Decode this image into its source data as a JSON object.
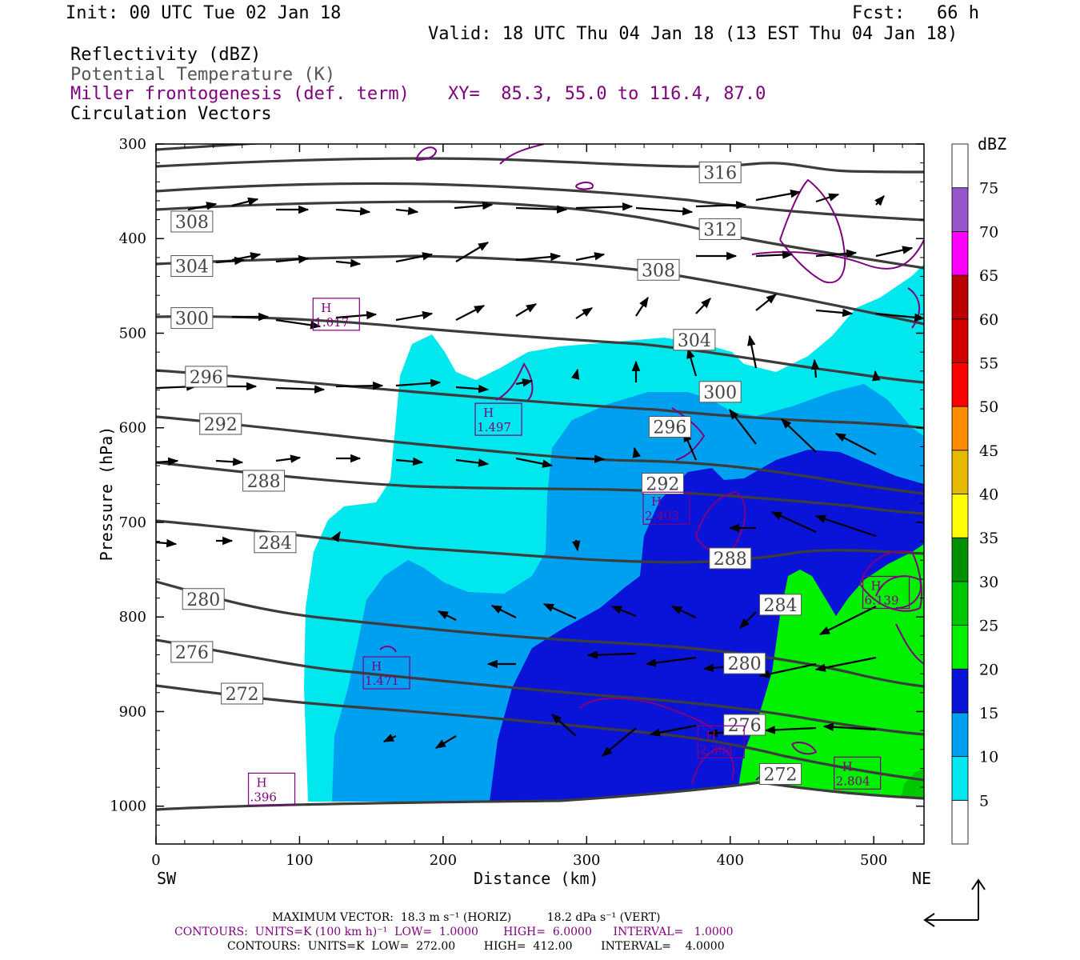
{
  "header": {
    "init": "Init: 00 UTC Tue 02 Jan 18",
    "fcst": "Fcst:   66 h",
    "valid": "Valid: 18 UTC Thu 04 Jan 18 (13 EST Thu 04 Jan 18)",
    "legend": [
      {
        "text": "Reflectivity (dBZ)",
        "color": "#000000"
      },
      {
        "text": "Potential Temperature (K)",
        "color": "#555555"
      },
      {
        "text": "Miller frontogenesis (def. term)",
        "color": "#800080"
      },
      {
        "text": "Circulation Vectors",
        "color": "#000000"
      }
    ],
    "xy": "XY=  85.3, 55.0 to 116.4, 87.0"
  },
  "chart_data": {
    "type": "heatmap",
    "xlabel": "Distance (km)",
    "ylabel": "Pressure (hPa)",
    "xlim": [
      0,
      535
    ],
    "ylim": [
      1040,
      300
    ],
    "x_ticks": [
      "0",
      "100",
      "200",
      "300",
      "400",
      "500"
    ],
    "x_tick_values": [
      0,
      100,
      200,
      300,
      400,
      500
    ],
    "y_ticks": [
      "300",
      "400",
      "500",
      "600",
      "700",
      "800",
      "900",
      "1000"
    ],
    "y_tick_values": [
      300,
      400,
      500,
      600,
      700,
      800,
      900,
      1000
    ],
    "sw_label": "SW",
    "ne_label": "NE",
    "colorbar": {
      "unit": "dBZ",
      "levels": [
        "5",
        "10",
        "15",
        "20",
        "25",
        "30",
        "35",
        "40",
        "45",
        "50",
        "55",
        "60",
        "65",
        "70",
        "75"
      ],
      "colors": [
        "#ffffff",
        "#00e8ee",
        "#00a0f0",
        "#0a14d8",
        "#00f000",
        "#00c800",
        "#009000",
        "#ffff00",
        "#e6b800",
        "#ff8c00",
        "#ff0000",
        "#d40000",
        "#bc0000",
        "#ff00ff",
        "#9955cc",
        "#ffffff"
      ]
    },
    "theta_labels": [
      {
        "text": "316",
        "x": 393,
        "p": 330
      },
      {
        "text": "312",
        "x": 393,
        "p": 390
      },
      {
        "text": "308",
        "x": 25,
        "p": 382
      },
      {
        "text": "308",
        "x": 350,
        "p": 433
      },
      {
        "text": "304",
        "x": 25,
        "p": 429
      },
      {
        "text": "304",
        "x": 375,
        "p": 507
      },
      {
        "text": "300",
        "x": 25,
        "p": 484
      },
      {
        "text": "300",
        "x": 393,
        "p": 562
      },
      {
        "text": "296",
        "x": 35,
        "p": 546
      },
      {
        "text": "296",
        "x": 358,
        "p": 599
      },
      {
        "text": "292",
        "x": 45,
        "p": 596
      },
      {
        "text": "292",
        "x": 353,
        "p": 659
      },
      {
        "text": "288",
        "x": 75,
        "p": 656
      },
      {
        "text": "288",
        "x": 400,
        "p": 738
      },
      {
        "text": "284",
        "x": 83,
        "p": 721
      },
      {
        "text": "284",
        "x": 435,
        "p": 787
      },
      {
        "text": "280",
        "x": 33,
        "p": 781
      },
      {
        "text": "280",
        "x": 410,
        "p": 849
      },
      {
        "text": "276",
        "x": 25,
        "p": 837
      },
      {
        "text": "276",
        "x": 410,
        "p": 914
      },
      {
        "text": "272",
        "x": 60,
        "p": 881
      },
      {
        "text": "272",
        "x": 435,
        "p": 966
      }
    ],
    "frontogenesis_highs": [
      {
        "label": "H",
        "value": "1.017",
        "x": 125,
        "p": 480
      },
      {
        "label": "H",
        "value": "1.497",
        "x": 238,
        "p": 591
      },
      {
        "label": "H",
        "value": "2.403",
        "x": 355,
        "p": 685
      },
      {
        "label": "H",
        "value": "6.139",
        "x": 508,
        "p": 774
      },
      {
        "label": "H",
        "value": "1.471",
        "x": 160,
        "p": 859
      },
      {
        "label": "H",
        "value": "2.304",
        "x": 393,
        "p": 932
      },
      {
        "label": "H",
        "value": "2.804",
        "x": 488,
        "p": 965
      },
      {
        "label": "H",
        "value": ".396",
        "x": 80,
        "p": 982
      }
    ],
    "footer": {
      "vector_line": "MAXIMUM VECTOR:  18.3 m s⁻¹ (HORIZ)          18.2 dPa s⁻¹ (VERT)",
      "contours_purple": "CONTOURS:  UNITS=K (100 km h)⁻¹  LOW=  1.0000       HIGH=  6.0000      INTERVAL=   1.0000",
      "contours_black": "CONTOURS:  UNITS=K  LOW=  272.00        HIGH=  412.00        INTERVAL=    4.0000"
    }
  }
}
